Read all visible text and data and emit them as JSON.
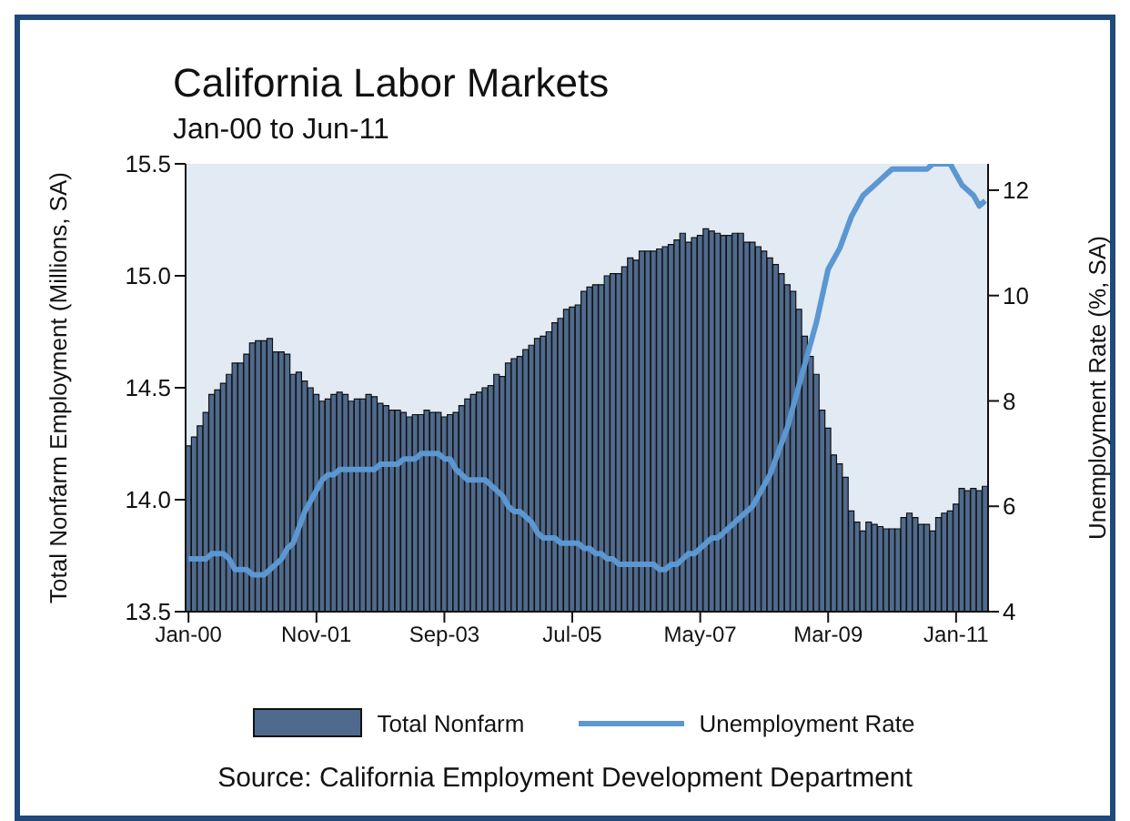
{
  "chart_data": {
    "type": "bar",
    "title": "California Labor Markets",
    "subtitle": "Jan-00 to Jun-11",
    "ylabel": "Total Nonfarm Employment (Millions, SA)",
    "y2label": "Unemployment Rate (%, SA)",
    "annotations": [
      "Source: California Employment Development Department"
    ],
    "categories": [
      "Jan-00",
      null,
      null,
      null,
      null,
      null,
      null,
      null,
      null,
      null,
      null,
      null,
      null,
      null,
      null,
      null,
      null,
      null,
      null,
      null,
      null,
      null,
      "Nov-01",
      null,
      null,
      null,
      null,
      null,
      null,
      null,
      null,
      null,
      null,
      null,
      null,
      null,
      null,
      null,
      null,
      null,
      null,
      null,
      null,
      null,
      "Sep-03",
      null,
      null,
      null,
      null,
      null,
      null,
      null,
      null,
      null,
      null,
      null,
      null,
      null,
      null,
      null,
      null,
      null,
      null,
      null,
      null,
      null,
      "Jul-05",
      null,
      null,
      null,
      null,
      null,
      null,
      null,
      null,
      null,
      null,
      null,
      null,
      null,
      null,
      null,
      null,
      null,
      null,
      null,
      null,
      null,
      "May-07",
      null,
      null,
      null,
      null,
      null,
      null,
      null,
      null,
      null,
      null,
      null,
      null,
      null,
      null,
      null,
      null,
      null,
      null,
      null,
      null,
      null,
      "Mar-09",
      null,
      null,
      null,
      null,
      null,
      null,
      null,
      null,
      null,
      null,
      null,
      null,
      null,
      null,
      null,
      null,
      null,
      null,
      null,
      null,
      null,
      "Jan-11",
      null,
      null,
      null,
      null,
      null
    ],
    "series": [
      {
        "name": "Total Nonfarm",
        "color": "#4f6a8c",
        "values": [
          14.24,
          14.28,
          14.33,
          14.39,
          14.47,
          14.49,
          14.52,
          14.56,
          14.61,
          14.61,
          14.65,
          14.7,
          14.71,
          14.71,
          14.72,
          14.66,
          14.66,
          14.65,
          14.56,
          14.57,
          14.53,
          14.5,
          14.47,
          14.44,
          14.45,
          14.47,
          14.48,
          14.47,
          14.44,
          14.45,
          14.45,
          14.47,
          14.46,
          14.43,
          14.42,
          14.4,
          14.4,
          14.39,
          14.37,
          14.38,
          14.38,
          14.4,
          14.39,
          14.39,
          14.37,
          14.38,
          14.39,
          14.42,
          14.45,
          14.47,
          14.48,
          14.5,
          14.51,
          14.56,
          14.55,
          14.61,
          14.63,
          14.64,
          14.67,
          14.69,
          14.72,
          14.73,
          14.75,
          14.79,
          14.81,
          14.85,
          14.86,
          14.87,
          14.93,
          14.95,
          14.96,
          14.96,
          15.0,
          15.01,
          15.01,
          15.04,
          15.08,
          15.07,
          15.11,
          15.11,
          15.11,
          15.12,
          15.13,
          15.14,
          15.16,
          15.19,
          15.15,
          15.17,
          15.18,
          15.21,
          15.2,
          15.19,
          15.18,
          15.18,
          15.19,
          15.19,
          15.15,
          15.15,
          15.13,
          15.11,
          15.08,
          15.05,
          15.01,
          14.96,
          14.93,
          14.85,
          14.73,
          14.64,
          14.56,
          14.4,
          14.32,
          14.2,
          14.16,
          14.1,
          13.95,
          13.9,
          13.86,
          13.9,
          13.89,
          13.88,
          13.87,
          13.87,
          13.87,
          13.92,
          13.94,
          13.92,
          13.89,
          13.89,
          13.86,
          13.92,
          13.94,
          13.95,
          13.98,
          14.05,
          14.04,
          14.05,
          14.04,
          14.06
        ]
      },
      {
        "name": "Unemployment Rate",
        "type": "line",
        "axis": "y2",
        "color": "#5b97d1",
        "values": [
          5.0,
          5.0,
          5.0,
          5.0,
          5.1,
          5.1,
          5.1,
          5.0,
          4.8,
          4.8,
          4.8,
          4.7,
          4.7,
          4.7,
          4.8,
          4.9,
          5.0,
          5.2,
          5.3,
          5.6,
          5.9,
          6.1,
          6.3,
          6.5,
          6.6,
          6.6,
          6.7,
          6.7,
          6.7,
          6.7,
          6.7,
          6.7,
          6.7,
          6.8,
          6.8,
          6.8,
          6.8,
          6.9,
          6.9,
          6.9,
          7.0,
          7.0,
          7.0,
          7.0,
          6.9,
          6.9,
          6.7,
          6.6,
          6.5,
          6.5,
          6.5,
          6.5,
          6.4,
          6.3,
          6.2,
          6.0,
          5.9,
          5.9,
          5.8,
          5.7,
          5.5,
          5.4,
          5.4,
          5.4,
          5.3,
          5.3,
          5.3,
          5.3,
          5.2,
          5.2,
          5.1,
          5.1,
          5.0,
          5.0,
          4.9,
          4.9,
          4.9,
          4.9,
          4.9,
          4.9,
          4.9,
          4.8,
          4.8,
          4.9,
          4.9,
          5.0,
          5.1,
          5.1,
          5.2,
          5.3,
          5.4,
          5.4,
          5.5,
          5.6,
          5.7,
          5.8,
          5.9,
          6.0,
          6.2,
          6.4,
          6.6,
          6.9,
          7.2,
          7.5,
          7.9,
          8.3,
          8.7,
          9.1,
          9.5,
          10.0,
          10.5,
          10.7,
          10.9,
          11.2,
          11.5,
          11.7,
          11.9,
          12.0,
          12.1,
          12.2,
          12.3,
          12.4,
          12.4,
          12.4,
          12.4,
          12.4,
          12.4,
          12.4,
          12.5,
          12.5,
          12.5,
          12.5,
          12.3,
          12.1,
          12.0,
          11.9,
          11.7,
          11.8
        ]
      }
    ],
    "ylim": [
      13.5,
      15.5
    ],
    "yticks": [
      13.5,
      {
        "value": 14,
        "label": "14.0"
      },
      14.5,
      {
        "value": 15,
        "label": "15.0"
      },
      15.5
    ],
    "y2lim": [
      4,
      12.5
    ],
    "y2ticks": [
      4,
      6,
      8,
      10,
      12
    ],
    "legend": "bottom",
    "marker": "none",
    "line_style": "solid"
  }
}
